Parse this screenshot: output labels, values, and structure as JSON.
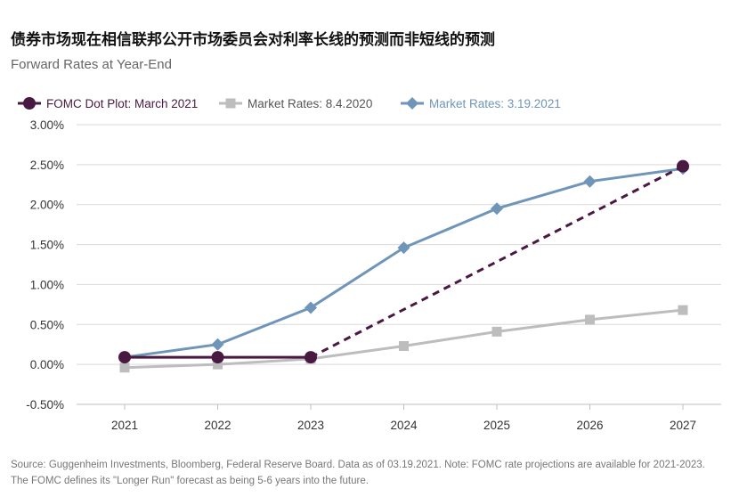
{
  "title": "债券市场现在相信联邦公开市场委员会对利率长线的预测而非短线的预测",
  "subtitle": "Forward Rates at Year-End",
  "source": "Source: Guggenheim Investments, Bloomberg, Federal Reserve Board. Data as of 03.19.2021. Note: FOMC rate projections are available for 2021-2023. The FOMC defines its \"Longer Run\" forecast as being 5-6 years into the future.",
  "chart_data": {
    "type": "line",
    "categories": [
      "2021",
      "2022",
      "2023",
      "2024",
      "2025",
      "2026",
      "2027"
    ],
    "ylim": [
      -0.5,
      3.0
    ],
    "yticks": [
      -0.5,
      0.0,
      0.5,
      1.0,
      1.5,
      2.0,
      2.5,
      3.0
    ],
    "ytick_labels": [
      "-0.50%",
      "0.00%",
      "0.50%",
      "1.00%",
      "1.50%",
      "2.00%",
      "2.50%",
      "3.00%"
    ],
    "grid": "horizontal",
    "legend_position": "top",
    "series": [
      {
        "name": "FOMC Dot Plot: March 2021",
        "color": "#4a1942",
        "marker": "circle",
        "values": [
          0.09,
          0.09,
          0.09,
          null,
          null,
          null,
          2.48
        ],
        "dashed_from_index": 2
      },
      {
        "name": "Market Rates: 8.4.2020",
        "color": "#bdbdbd",
        "marker": "square",
        "values": [
          -0.04,
          0.0,
          0.07,
          0.23,
          0.41,
          0.56,
          0.68
        ]
      },
      {
        "name": "Market Rates: 3.19.2021",
        "color": "#6f95b8",
        "marker": "diamond",
        "values": [
          0.09,
          0.25,
          0.71,
          1.46,
          1.95,
          2.29,
          2.45
        ]
      }
    ]
  }
}
